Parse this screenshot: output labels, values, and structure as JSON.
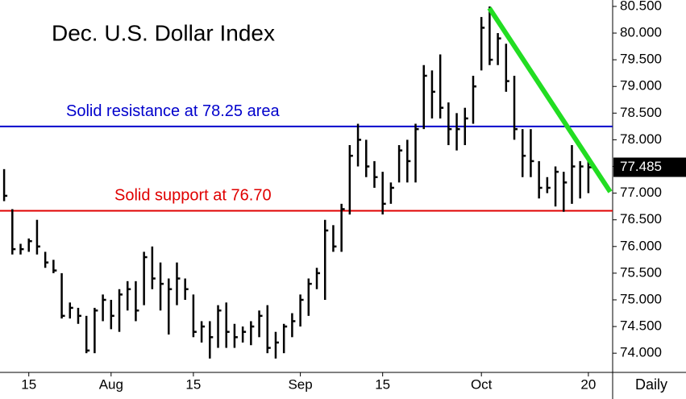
{
  "chart_data": {
    "type": "ohlc",
    "title": "Dec. U.S. Dollar Index",
    "period": "Daily",
    "categories": [
      null,
      null,
      null,
      "15",
      null,
      null,
      null,
      null,
      null,
      null,
      null,
      null,
      null,
      "Aug",
      null,
      null,
      null,
      null,
      null,
      null,
      null,
      null,
      null,
      "15",
      null,
      null,
      null,
      null,
      null,
      null,
      null,
      null,
      null,
      null,
      null,
      null,
      "Sep",
      null,
      null,
      null,
      null,
      null,
      null,
      null,
      null,
      null,
      "15",
      null,
      null,
      null,
      null,
      null,
      null,
      null,
      null,
      null,
      null,
      null,
      "Oct",
      null,
      null,
      null,
      null,
      null,
      null,
      null,
      null,
      null,
      null,
      null,
      null,
      "20"
    ],
    "high": [
      77.45,
      76.7,
      76.05,
      76.15,
      76.5,
      75.9,
      75.75,
      75.5,
      74.95,
      74.85,
      74.7,
      74.85,
      75.1,
      75.0,
      75.2,
      75.35,
      75.35,
      75.9,
      76.0,
      75.7,
      75.4,
      75.7,
      75.4,
      75.1,
      74.6,
      74.6,
      74.9,
      74.95,
      74.55,
      74.5,
      74.6,
      74.8,
      74.9,
      74.4,
      74.55,
      74.75,
      75.1,
      75.4,
      75.6,
      76.5,
      76.4,
      76.8,
      77.9,
      78.3,
      78.0,
      77.6,
      77.4,
      77.2,
      77.9,
      78.0,
      78.3,
      79.4,
      79.3,
      79.6,
      78.7,
      78.5,
      78.6,
      79.2,
      80.3,
      80.5,
      80.0,
      79.8,
      79.2,
      78.2,
      78.2,
      77.6,
      77.3,
      77.5,
      77.4,
      77.9,
      77.6,
      77.7
    ],
    "low": [
      76.85,
      75.85,
      75.85,
      75.9,
      75.85,
      75.6,
      75.5,
      74.65,
      74.65,
      74.55,
      74.0,
      74.0,
      74.6,
      74.45,
      74.4,
      74.8,
      74.6,
      74.9,
      75.2,
      74.8,
      74.35,
      74.9,
      75.0,
      74.3,
      74.2,
      73.9,
      74.1,
      74.1,
      74.1,
      74.2,
      74.15,
      74.3,
      74.0,
      73.9,
      74.0,
      74.3,
      74.5,
      74.7,
      75.2,
      75.0,
      75.9,
      75.9,
      76.6,
      77.5,
      77.3,
      77.1,
      76.6,
      76.8,
      77.2,
      77.2,
      77.2,
      78.2,
      78.4,
      78.4,
      77.9,
      77.8,
      77.9,
      78.3,
      79.3,
      79.4,
      79.4,
      78.9,
      78.0,
      77.3,
      77.3,
      76.9,
      77.0,
      76.75,
      76.65,
      76.8,
      76.9,
      77.0
    ],
    "close": [
      76.95,
      75.95,
      75.95,
      76.1,
      76.0,
      75.7,
      75.55,
      74.7,
      74.85,
      74.7,
      74.05,
      74.8,
      75.0,
      74.7,
      75.1,
      75.2,
      74.8,
      75.8,
      75.4,
      75.3,
      75.2,
      75.4,
      75.2,
      74.4,
      74.5,
      74.3,
      74.8,
      74.4,
      74.3,
      74.4,
      74.5,
      74.7,
      74.1,
      74.2,
      74.5,
      74.6,
      75.0,
      75.3,
      75.5,
      76.3,
      76.0,
      76.7,
      77.7,
      78.0,
      77.5,
      77.3,
      76.8,
      77.1,
      77.8,
      77.6,
      78.2,
      79.2,
      78.9,
      78.6,
      78.2,
      78.2,
      78.4,
      79.0,
      80.1,
      79.5,
      79.9,
      79.1,
      78.2,
      77.7,
      77.6,
      77.1,
      77.1,
      77.4,
      77.2,
      77.5,
      77.5,
      77.485
    ],
    "color": "#000000",
    "levels": [
      {
        "value": 78.25,
        "color": "#0000cc",
        "label": "Solid resistance at 78.25 area"
      },
      {
        "value": 76.67,
        "color": "#e00000",
        "label": "Solid support at 76.70"
      }
    ],
    "ylim": [
      73.64,
      80.62
    ],
    "yticks": [
      {
        "value": 74,
        "label": "74.000"
      },
      {
        "value": 74.5,
        "label": "74.500"
      },
      {
        "value": 75,
        "label": "75.000"
      },
      {
        "value": 75.5,
        "label": "75.500"
      },
      {
        "value": 76,
        "label": "76.000"
      },
      {
        "value": 76.5,
        "label": "76.500"
      },
      {
        "value": 77,
        "label": "77.000"
      },
      {
        "value": 77.5,
        "label": "77.500"
      },
      {
        "value": 78,
        "label": "78.000"
      },
      {
        "value": 78.5,
        "label": "78.500"
      },
      {
        "value": 79,
        "label": "79.000"
      },
      {
        "value": 79.5,
        "label": "79.500"
      },
      {
        "value": 80,
        "label": "80.000"
      },
      {
        "value": 80.5,
        "label": "80.500"
      }
    ]
  }
}
